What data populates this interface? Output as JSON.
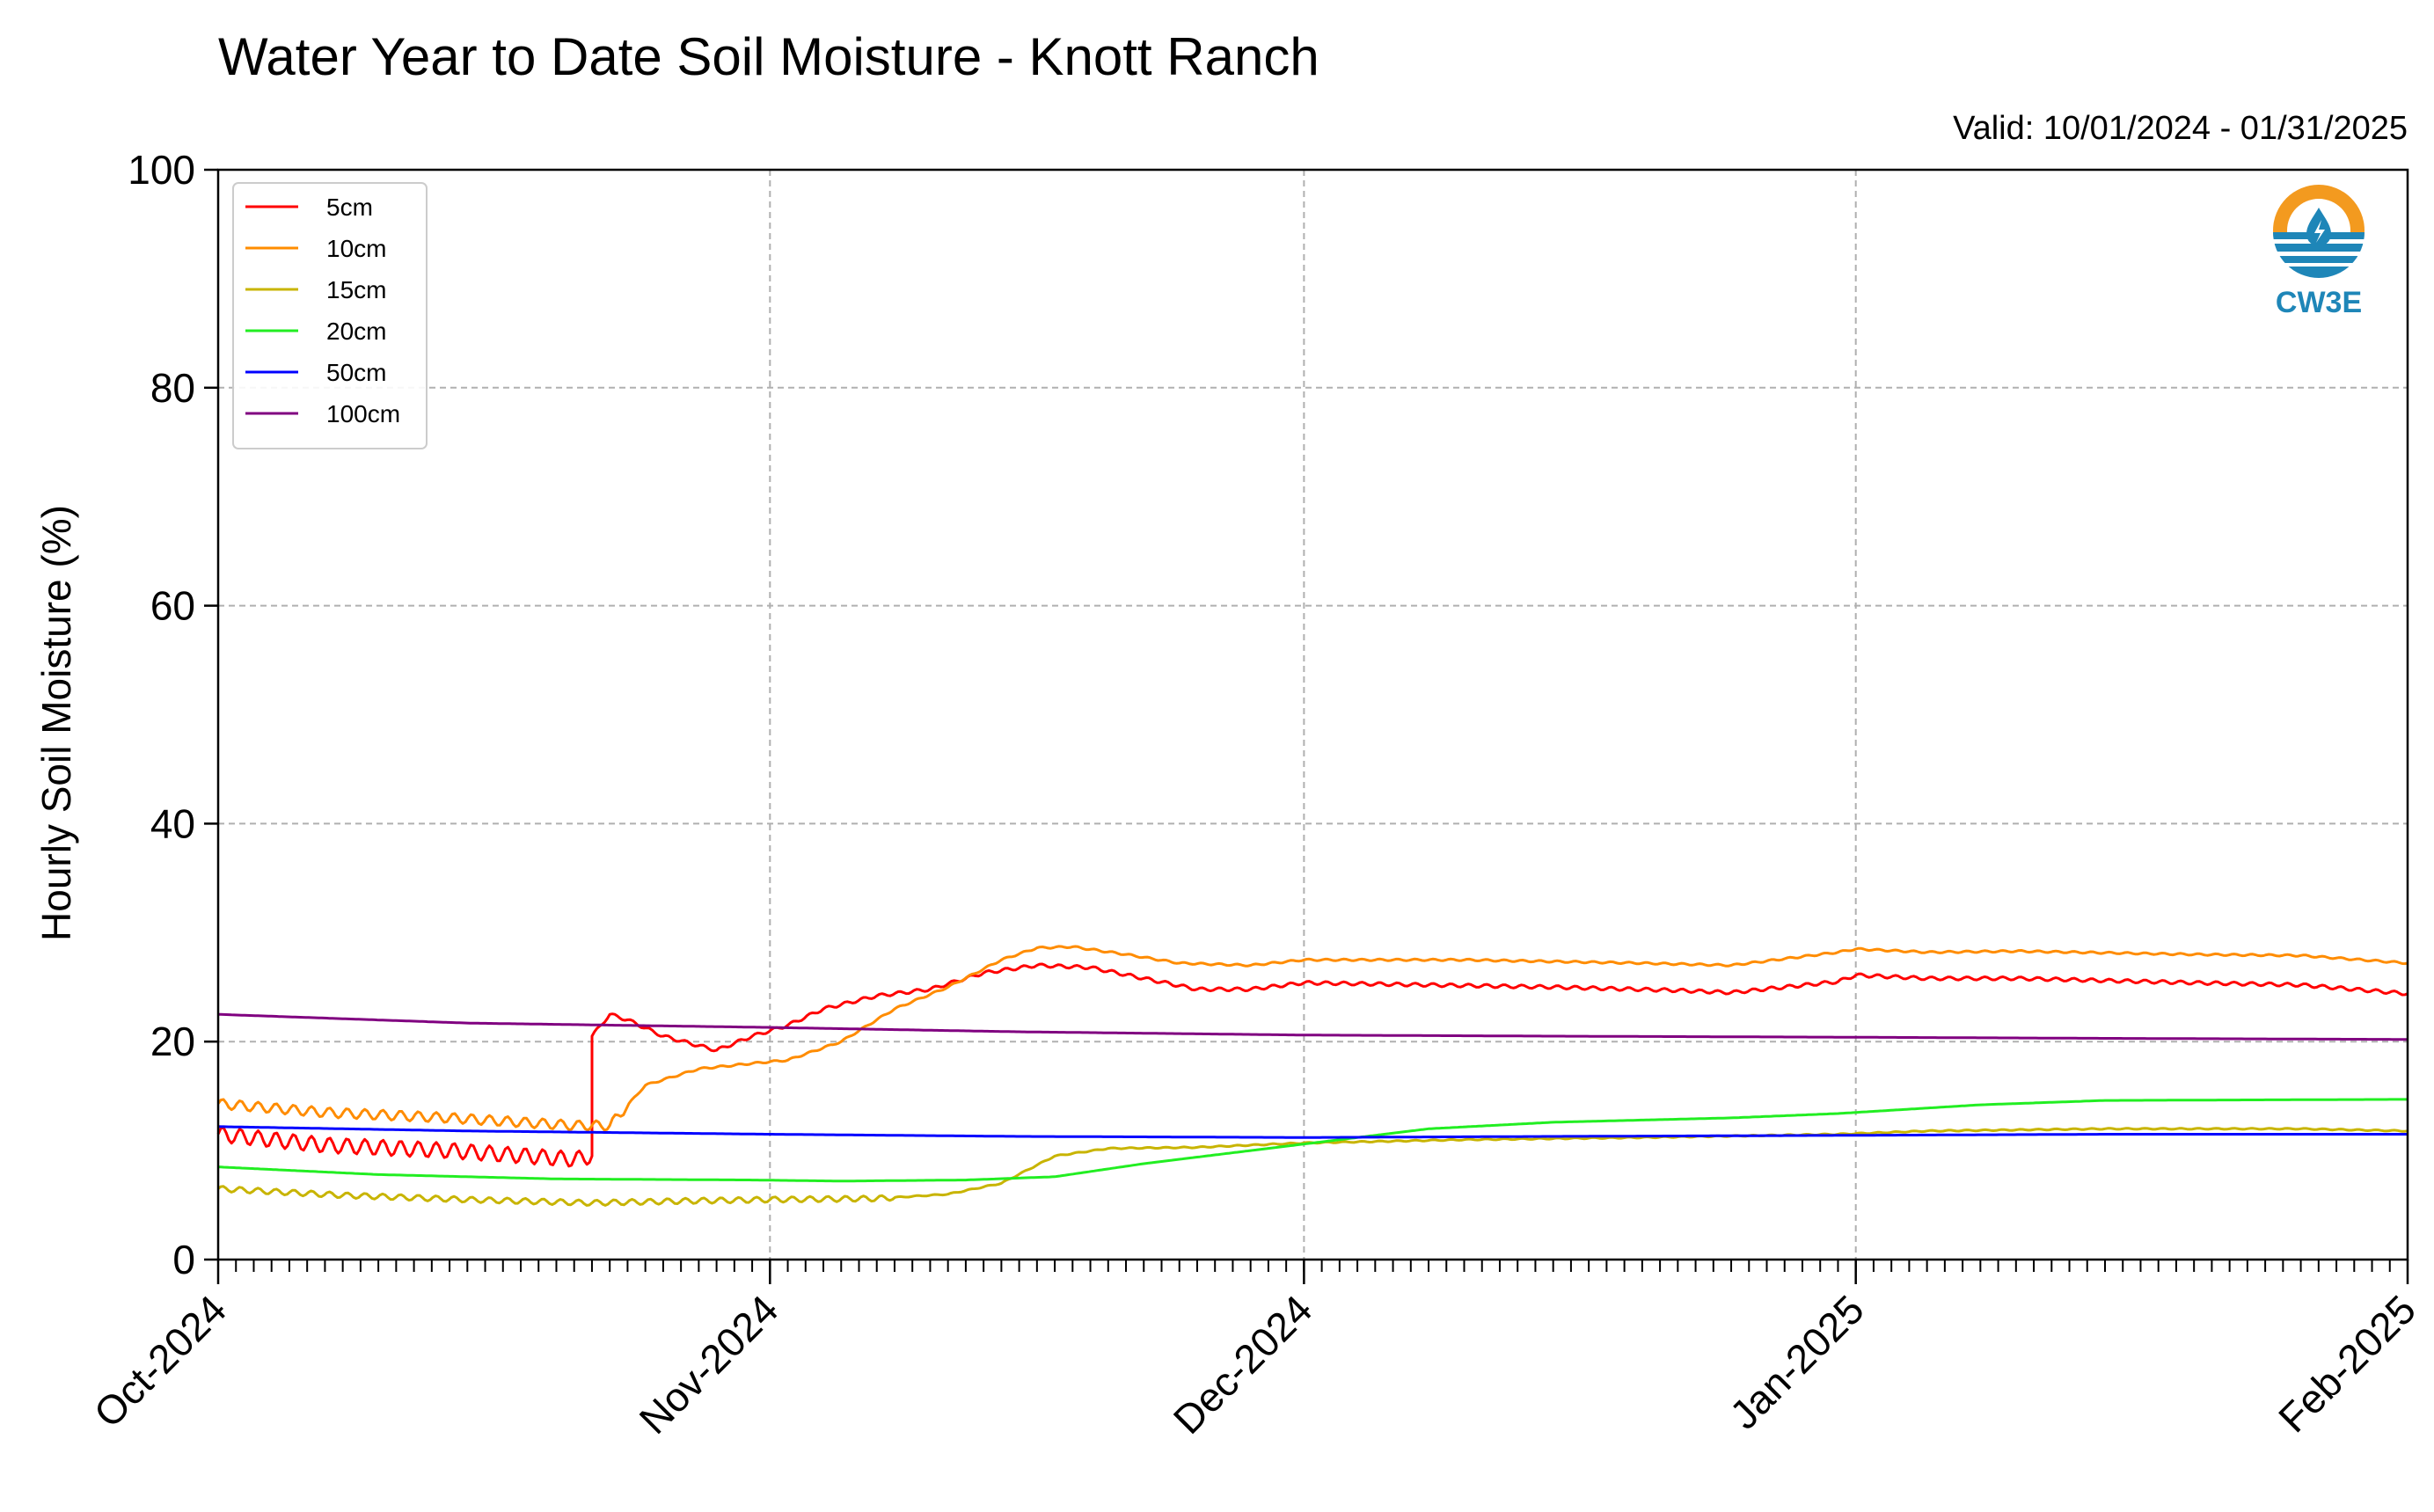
{
  "chart_data": {
    "type": "line",
    "title": "Water Year to Date Soil Moisture - Knott Ranch",
    "subtitle": "Valid: 10/01/2024 - 01/31/2025",
    "xlabel": "",
    "ylabel": "Hourly Soil Moisture (%)",
    "x_range": [
      "2024-10-01",
      "2025-02-01"
    ],
    "ylim": [
      0,
      100
    ],
    "y_ticks": [
      "0",
      "20",
      "40",
      "60",
      "80",
      "100"
    ],
    "x_ticks": [
      {
        "date": "2024-10-01",
        "label": "Oct-2024"
      },
      {
        "date": "2024-11-01",
        "label": "Nov-2024"
      },
      {
        "date": "2024-12-01",
        "label": "Dec-2024"
      },
      {
        "date": "2025-01-01",
        "label": "Jan-2025"
      },
      {
        "date": "2025-02-01",
        "label": "Feb-2025"
      }
    ],
    "grid": true,
    "legend_position": "top-left",
    "logo": {
      "text": "CW3E",
      "icon": "cw3e-water-drop-logo",
      "colors": {
        "sun": "#F39A1F",
        "water": "#1E86B8"
      }
    },
    "series": [
      {
        "name": "5cm",
        "color": "#FF0000",
        "points": [
          [
            "2024-10-01",
            11.5
          ],
          [
            "2024-10-07",
            10.5
          ],
          [
            "2024-10-14",
            10
          ],
          [
            "2024-10-21",
            9.2
          ],
          [
            "2024-10-22",
            9.5
          ],
          [
            "2024-10-22",
            20.5
          ],
          [
            "2024-10-23",
            22.5
          ],
          [
            "2024-10-24",
            22
          ],
          [
            "2024-10-26",
            20.5
          ],
          [
            "2024-10-29",
            19.2
          ],
          [
            "2024-10-31",
            20.5
          ],
          [
            "2024-11-02",
            21.5
          ],
          [
            "2024-11-04",
            23
          ],
          [
            "2024-11-07",
            24.2
          ],
          [
            "2024-11-10",
            24.8
          ],
          [
            "2024-11-13",
            26.3
          ],
          [
            "2024-11-16",
            27
          ],
          [
            "2024-11-19",
            26.8
          ],
          [
            "2024-11-22",
            25.8
          ],
          [
            "2024-11-25",
            24.8
          ],
          [
            "2024-11-28",
            24.8
          ],
          [
            "2024-12-01",
            25.4
          ],
          [
            "2024-12-08",
            25.2
          ],
          [
            "2024-12-15",
            25
          ],
          [
            "2024-12-22",
            24.7
          ],
          [
            "2024-12-25",
            24.5
          ],
          [
            "2024-12-31",
            25.5
          ],
          [
            "2025-01-01",
            26.1
          ],
          [
            "2025-01-05",
            25.8
          ],
          [
            "2025-01-10",
            25.8
          ],
          [
            "2025-01-20",
            25.4
          ],
          [
            "2025-01-26",
            25.2
          ],
          [
            "2025-02-01",
            24.4
          ]
        ]
      },
      {
        "name": "10cm",
        "color": "#FF8C00",
        "points": [
          [
            "2024-10-01",
            14.3
          ],
          [
            "2024-10-07",
            13.5
          ],
          [
            "2024-10-14",
            13
          ],
          [
            "2024-10-21",
            12.3
          ],
          [
            "2024-10-23",
            12.3
          ],
          [
            "2024-10-25",
            16
          ],
          [
            "2024-10-28",
            17.5
          ],
          [
            "2024-10-31",
            18
          ],
          [
            "2024-11-02",
            18.3
          ],
          [
            "2024-11-05",
            20
          ],
          [
            "2024-11-08",
            23
          ],
          [
            "2024-11-11",
            25
          ],
          [
            "2024-11-14",
            27.5
          ],
          [
            "2024-11-16",
            28.6
          ],
          [
            "2024-11-18",
            28.7
          ],
          [
            "2024-11-21",
            28
          ],
          [
            "2024-11-24",
            27.2
          ],
          [
            "2024-11-28",
            27
          ],
          [
            "2024-12-01",
            27.5
          ],
          [
            "2024-12-10",
            27.5
          ],
          [
            "2024-12-20",
            27.2
          ],
          [
            "2024-12-25",
            27
          ],
          [
            "2024-12-31",
            28.2
          ],
          [
            "2025-01-01",
            28.5
          ],
          [
            "2025-01-05",
            28.2
          ],
          [
            "2025-01-10",
            28.3
          ],
          [
            "2025-01-20",
            28
          ],
          [
            "2025-01-26",
            27.9
          ],
          [
            "2025-02-01",
            27.2
          ]
        ]
      },
      {
        "name": "15cm",
        "color": "#C8B400",
        "points": [
          [
            "2024-10-01",
            6.5
          ],
          [
            "2024-10-08",
            5.9
          ],
          [
            "2024-10-15",
            5.5
          ],
          [
            "2024-10-22",
            5.2
          ],
          [
            "2024-10-28",
            5.4
          ],
          [
            "2024-11-01",
            5.5
          ],
          [
            "2024-11-07",
            5.6
          ],
          [
            "2024-11-11",
            6
          ],
          [
            "2024-11-14",
            7
          ],
          [
            "2024-11-17",
            9.5
          ],
          [
            "2024-11-20",
            10.2
          ],
          [
            "2024-11-25",
            10.3
          ],
          [
            "2024-12-01",
            10.7
          ],
          [
            "2024-12-10",
            11
          ],
          [
            "2024-12-20",
            11.2
          ],
          [
            "2024-12-31",
            11.5
          ],
          [
            "2025-01-05",
            11.8
          ],
          [
            "2025-01-15",
            12
          ],
          [
            "2025-01-26",
            12
          ],
          [
            "2025-02-01",
            11.8
          ]
        ]
      },
      {
        "name": "20cm",
        "color": "#22EE22",
        "points": [
          [
            "2024-10-01",
            8.5
          ],
          [
            "2024-10-10",
            7.8
          ],
          [
            "2024-10-20",
            7.4
          ],
          [
            "2024-10-31",
            7.3
          ],
          [
            "2024-11-05",
            7.2
          ],
          [
            "2024-11-12",
            7.3
          ],
          [
            "2024-11-17",
            7.6
          ],
          [
            "2024-11-22",
            8.8
          ],
          [
            "2024-11-28",
            10
          ],
          [
            "2024-12-01",
            10.6
          ],
          [
            "2024-12-08",
            12
          ],
          [
            "2024-12-15",
            12.6
          ],
          [
            "2024-12-25",
            13
          ],
          [
            "2024-12-31",
            13.4
          ],
          [
            "2025-01-08",
            14.2
          ],
          [
            "2025-01-15",
            14.6
          ],
          [
            "2025-02-01",
            14.7
          ]
        ]
      },
      {
        "name": "50cm",
        "color": "#0000FF",
        "points": [
          [
            "2024-10-01",
            12.2
          ],
          [
            "2024-10-15",
            11.8
          ],
          [
            "2024-11-01",
            11.5
          ],
          [
            "2024-11-15",
            11.3
          ],
          [
            "2024-12-01",
            11.2
          ],
          [
            "2024-12-15",
            11.3
          ],
          [
            "2025-01-01",
            11.4
          ],
          [
            "2025-01-15",
            11.5
          ],
          [
            "2025-02-01",
            11.5
          ]
        ]
      },
      {
        "name": "100cm",
        "color": "#800080",
        "points": [
          [
            "2024-10-01",
            22.5
          ],
          [
            "2024-10-15",
            21.7
          ],
          [
            "2024-11-01",
            21.3
          ],
          [
            "2024-11-15",
            20.9
          ],
          [
            "2024-12-01",
            20.6
          ],
          [
            "2024-12-15",
            20.5
          ],
          [
            "2025-01-01",
            20.4
          ],
          [
            "2025-01-15",
            20.3
          ],
          [
            "2025-02-01",
            20.2
          ]
        ]
      }
    ]
  }
}
